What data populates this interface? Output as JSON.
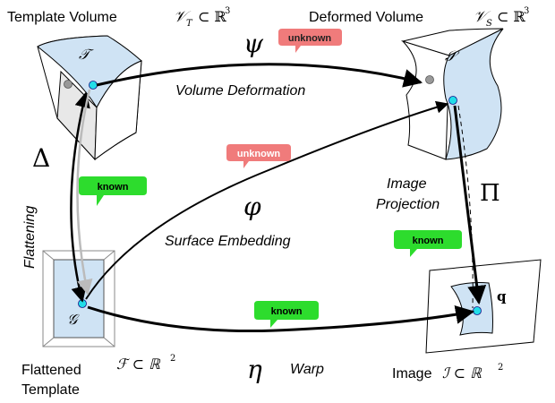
{
  "volumes": {
    "template": {
      "label": "Template Volume",
      "math": "𝒱",
      "sub": "T",
      "set": "⊂ ℝ",
      "sup": "3",
      "symbol": "𝒯"
    },
    "deformed": {
      "label": "Deformed Volume",
      "math": "𝒱",
      "sub": "S",
      "set": "⊂ ℝ",
      "sup": "3",
      "symbol": "𝒮"
    },
    "flattened": {
      "label_line1": "Flattened",
      "label_line2": "Template",
      "math": "ℱ ⊂ ℝ",
      "sup": "2",
      "symbol": "𝒢"
    },
    "image": {
      "label": "Image",
      "math": "ℐ ⊂ ℝ",
      "sup": "2",
      "point": "q"
    }
  },
  "maps": {
    "psi": {
      "symbol": "ψ",
      "caption": "Volume Deformation",
      "status": "unknown"
    },
    "phi": {
      "symbol": "φ",
      "caption": "Surface Embedding",
      "status": "unknown"
    },
    "pi": {
      "symbol": "Π",
      "caption_line1": "Image",
      "caption_line2": "Projection",
      "status": "known"
    },
    "delta": {
      "symbol": "Δ",
      "caption": "Flattening",
      "status": "known"
    },
    "eta": {
      "symbol": "η",
      "caption": "Warp",
      "status": "known"
    }
  },
  "colors": {
    "volume_fill": "#cfe3f4",
    "unknown_badge": "#f07b7b",
    "known_badge": "#2ddc2d",
    "point": "#22dde8",
    "grey_point": "#999999"
  }
}
